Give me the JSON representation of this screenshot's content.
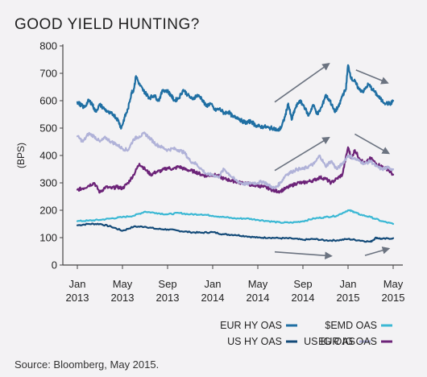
{
  "title": "GOOD YIELD HUNTING?",
  "source": "Source: Bloomberg, May 2015.",
  "colors": {
    "EUR HY OAS": "#1f6fa3",
    "$EMD OAS": "#3bb8d4",
    "US HY OAS": "#134a78",
    "US IG OAS": "#b0b2d8",
    "EUR IG OAS": "#6c2378",
    "arrow": "#6b7380",
    "axis": "#444444",
    "background": "#f3f2f4"
  },
  "chart_data": {
    "type": "line",
    "title": "GOOD YIELD HUNTING?",
    "ylabel": "(BPS)",
    "xlabel": "",
    "ylim": [
      0,
      800
    ],
    "yticks": [
      0,
      100,
      200,
      300,
      400,
      500,
      600,
      700,
      800
    ],
    "xticks": [
      {
        "t": 0,
        "label": [
          "Jan",
          "2013"
        ]
      },
      {
        "t": 4,
        "label": [
          "May",
          "2013"
        ]
      },
      {
        "t": 8,
        "label": [
          "Sep",
          "2013"
        ]
      },
      {
        "t": 12,
        "label": [
          "Jan",
          "2014"
        ]
      },
      {
        "t": 16,
        "label": [
          "May",
          "2014"
        ]
      },
      {
        "t": 20,
        "label": [
          "Sep",
          "2014"
        ]
      },
      {
        "t": 24,
        "label": [
          "Jan",
          "2015"
        ]
      },
      {
        "t": 28,
        "label": [
          "May",
          "2015"
        ]
      }
    ],
    "grid": false,
    "legend_position": "bottom-right",
    "series": [
      {
        "name": "EUR HY OAS",
        "x": [
          0,
          0.3,
          0.6,
          1.0,
          1.3,
          1.6,
          2.0,
          2.4,
          2.8,
          3.2,
          3.6,
          3.9,
          4.2,
          4.5,
          4.8,
          5.0,
          5.2,
          5.5,
          5.8,
          6.1,
          6.4,
          6.8,
          7.2,
          7.6,
          8.0,
          8.3,
          8.6,
          9.0,
          9.4,
          9.8,
          10.2,
          10.6,
          11.0,
          11.4,
          11.8,
          12.2,
          12.6,
          13.0,
          13.4,
          13.8,
          14.2,
          14.6,
          15.0,
          15.4,
          15.8,
          16.2,
          16.6,
          17.0,
          17.4,
          17.8,
          18.1,
          18.4,
          18.7,
          19.0,
          19.3,
          19.7,
          20.1,
          20.5,
          20.9,
          21.3,
          21.7,
          22.0,
          22.4,
          22.8,
          23.2,
          23.5,
          23.8,
          24.0,
          24.3,
          24.6,
          25.0,
          25.4,
          25.8,
          26.2,
          26.6,
          27.0,
          27.4,
          27.8,
          28.0
        ],
        "values": [
          595,
          585,
          575,
          600,
          590,
          560,
          585,
          570,
          555,
          550,
          530,
          500,
          540,
          570,
          630,
          640,
          690,
          660,
          640,
          625,
          610,
          620,
          600,
          640,
          635,
          620,
          600,
          610,
          640,
          620,
          605,
          620,
          610,
          580,
          590,
          565,
          570,
          555,
          560,
          540,
          540,
          525,
          520,
          525,
          510,
          505,
          505,
          500,
          500,
          490,
          505,
          540,
          590,
          530,
          570,
          600,
          580,
          545,
          585,
          550,
          580,
          620,
          600,
          560,
          580,
          620,
          640,
          730,
          680,
          670,
          640,
          635,
          660,
          640,
          620,
          600,
          590,
          590,
          600
        ]
      },
      {
        "name": "$EMD OAS",
        "x": [
          0,
          1,
          2,
          3,
          4,
          5,
          6,
          7,
          8,
          9,
          10,
          11,
          12,
          13,
          14,
          15,
          16,
          17,
          18,
          19,
          20,
          21,
          22,
          23,
          24,
          24.5,
          25,
          26,
          27,
          28
        ],
        "values": [
          160,
          162,
          165,
          170,
          175,
          180,
          195,
          190,
          185,
          190,
          185,
          185,
          180,
          175,
          170,
          170,
          165,
          160,
          155,
          155,
          160,
          170,
          175,
          180,
          200,
          195,
          185,
          175,
          160,
          150
        ]
      },
      {
        "name": "US HY OAS",
        "x": [
          0,
          1,
          2,
          3,
          4,
          5,
          6,
          7,
          8,
          9,
          10,
          11,
          12,
          13,
          14,
          15,
          16,
          17,
          18,
          19,
          20,
          21,
          22,
          23,
          24,
          25,
          26,
          26.5,
          27,
          28
        ],
        "values": [
          145,
          150,
          150,
          140,
          125,
          140,
          140,
          132,
          130,
          125,
          120,
          118,
          120,
          112,
          110,
          105,
          100,
          100,
          98,
          97,
          92,
          95,
          90,
          90,
          95,
          90,
          85,
          100,
          95,
          98
        ]
      },
      {
        "name": "US IG OAS",
        "x": [
          0,
          0.5,
          1,
          1.5,
          2,
          2.5,
          3,
          3.5,
          4,
          4.5,
          5,
          5.5,
          6,
          6.5,
          7,
          7.5,
          8,
          8.5,
          9,
          9.5,
          10,
          10.5,
          11,
          11.5,
          12,
          12.5,
          13,
          13.5,
          14,
          14.5,
          15,
          15.5,
          16,
          16.5,
          17,
          17.5,
          18,
          18.5,
          19,
          19.5,
          20,
          20.5,
          21,
          21.5,
          22,
          22.5,
          23,
          23.5,
          24,
          24.5,
          25,
          25.5,
          26,
          26.5,
          27,
          27.5,
          28
        ],
        "values": [
          470,
          450,
          480,
          470,
          450,
          465,
          450,
          440,
          425,
          420,
          460,
          470,
          480,
          460,
          440,
          430,
          420,
          425,
          420,
          410,
          380,
          370,
          350,
          330,
          330,
          320,
          350,
          330,
          310,
          300,
          295,
          300,
          300,
          305,
          290,
          280,
          300,
          330,
          340,
          350,
          350,
          360,
          370,
          400,
          360,
          380,
          350,
          370,
          400,
          390,
          380,
          370,
          380,
          360,
          350,
          355,
          350
        ]
      },
      {
        "name": "EUR IG OAS",
        "x": [
          0,
          0.5,
          1,
          1.5,
          2,
          2.5,
          3,
          3.5,
          4,
          4.5,
          5,
          5.5,
          6,
          6.5,
          7,
          7.5,
          8,
          8.5,
          9,
          9.5,
          10,
          10.5,
          11,
          11.5,
          12,
          12.5,
          13,
          13.5,
          14,
          14.5,
          15,
          15.5,
          16,
          16.5,
          17,
          17.5,
          18,
          18.5,
          19,
          19.5,
          20,
          20.5,
          21,
          21.5,
          22,
          22.5,
          23,
          23.5,
          24,
          24.3,
          24.6,
          25,
          25.5,
          26,
          26.5,
          27,
          27.5,
          28
        ],
        "values": [
          275,
          280,
          290,
          300,
          265,
          285,
          280,
          285,
          280,
          300,
          330,
          370,
          350,
          330,
          340,
          345,
          355,
          350,
          360,
          350,
          345,
          340,
          330,
          325,
          330,
          325,
          315,
          310,
          305,
          300,
          300,
          290,
          290,
          285,
          280,
          270,
          270,
          280,
          290,
          300,
          300,
          305,
          310,
          320,
          315,
          300,
          315,
          330,
          430,
          390,
          420,
          390,
          370,
          390,
          370,
          360,
          350,
          330
        ]
      }
    ]
  },
  "arrows": [
    {
      "from": [
        17.5,
        595
      ],
      "to": [
        22.3,
        735
      ]
    },
    {
      "from": [
        24.7,
        712
      ],
      "to": [
        27.5,
        665
      ]
    },
    {
      "from": [
        17.5,
        345
      ],
      "to": [
        22.3,
        465
      ]
    },
    {
      "from": [
        24.6,
        478
      ],
      "to": [
        27.6,
        408
      ]
    },
    {
      "from": [
        17.5,
        48
      ],
      "to": [
        22.5,
        33
      ]
    },
    {
      "from": [
        25.5,
        35
      ],
      "to": [
        27.6,
        60
      ]
    }
  ],
  "legend": [
    {
      "name": "EUR HY OAS",
      "row": 0,
      "col": 0
    },
    {
      "name": "$EMD OAS",
      "row": 0,
      "col": 1
    },
    {
      "name": "US HY OAS",
      "row": 1,
      "col": 0
    },
    {
      "name": "US IG OAS",
      "row": 1,
      "col": 1
    },
    {
      "name": "EUR IG OAS",
      "row": 1,
      "col": 2
    }
  ]
}
